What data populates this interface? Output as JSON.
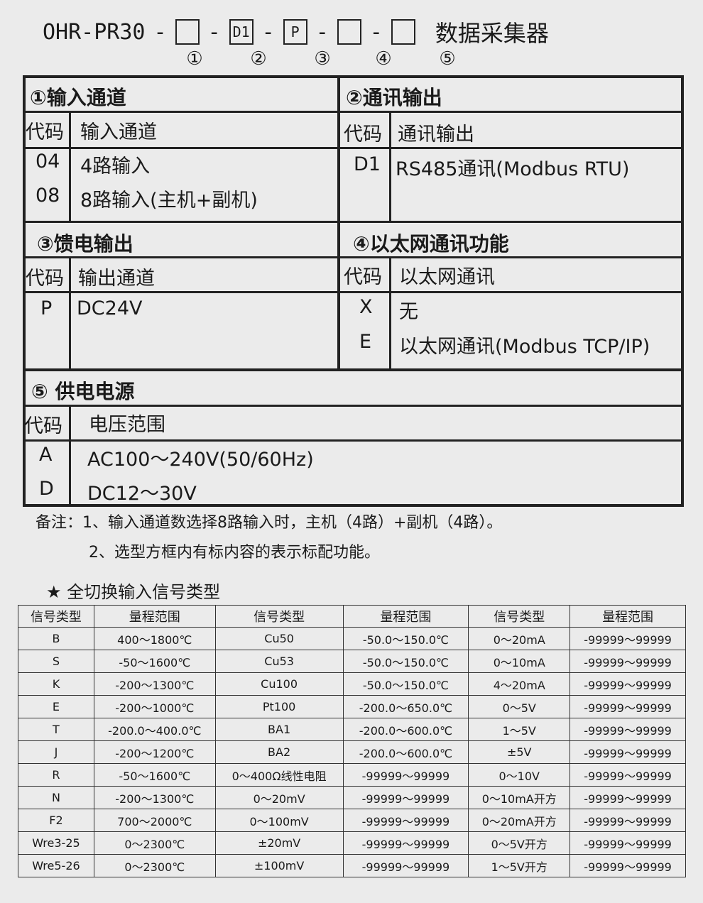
{
  "model": {
    "prefix": "OHR-PR30",
    "dash": "-",
    "slots": [
      "",
      "D1",
      "P",
      "",
      ""
    ],
    "title": "数据采集器",
    "markers": [
      "①",
      "②",
      "③",
      "④",
      "⑤"
    ]
  },
  "sections": {
    "s1": {
      "title": "①输入通道",
      "code_h": "代码",
      "col_h": "输入通道",
      "rows": [
        {
          "code": "04",
          "text": "4路输入"
        },
        {
          "code": "08",
          "text": "8路输入(主机+副机)"
        }
      ]
    },
    "s2": {
      "title": "②通讯输出",
      "code_h": "代码",
      "col_h": "通讯输出",
      "rows": [
        {
          "code": "D1",
          "text": "RS485通讯(Modbus RTU)"
        }
      ]
    },
    "s3": {
      "title": "③馈电输出",
      "code_h": "代码",
      "col_h": "输出通道",
      "rows": [
        {
          "code": "P",
          "text": "DC24V"
        }
      ]
    },
    "s4": {
      "title": "④以太网通讯功能",
      "code_h": "代码",
      "col_h": "以太网通讯",
      "rows": [
        {
          "code": "X",
          "text": "无"
        },
        {
          "code": "E",
          "text": "以太网通讯(Modbus TCP/IP)"
        }
      ]
    },
    "s5": {
      "title": "⑤ 供电电源",
      "code_h": "代码",
      "col_h": "电压范围",
      "rows": [
        {
          "code": "A",
          "text": "AC100～240V(50/60Hz)"
        },
        {
          "code": "D",
          "text": "DC12～30V"
        }
      ]
    }
  },
  "notes": {
    "n1": "备注：1、输入通道数选择8路输入时，主机（4路）+副机（4路）。",
    "n2": "2、选型方框内有标内容的表示标配功能。"
  },
  "signal_heading": "★ 全切换输入信号类型",
  "signal_table": {
    "headers": [
      "信号类型",
      "量程范围",
      "信号类型",
      "量程范围",
      "信号类型",
      "量程范围"
    ],
    "rows": [
      [
        "B",
        "400～1800℃",
        "Cu50",
        "-50.0～150.0℃",
        "0～20mA",
        "-99999～99999"
      ],
      [
        "S",
        "-50～1600℃",
        "Cu53",
        "-50.0～150.0℃",
        "0～10mA",
        "-99999～99999"
      ],
      [
        "K",
        "-200～1300℃",
        "Cu100",
        "-50.0～150.0℃",
        "4～20mA",
        "-99999～99999"
      ],
      [
        "E",
        "-200～1000℃",
        "Pt100",
        "-200.0～650.0℃",
        "0～5V",
        "-99999～99999"
      ],
      [
        "T",
        "-200.0～400.0℃",
        "BA1",
        "-200.0～600.0℃",
        "1～5V",
        "-99999～99999"
      ],
      [
        "J",
        "-200～1200℃",
        "BA2",
        "-200.0～600.0℃",
        "±5V",
        "-99999～99999"
      ],
      [
        "R",
        "-50～1600℃",
        "0～400Ω线性电阻",
        "-99999～99999",
        "0～10V",
        "-99999～99999"
      ],
      [
        "N",
        "-200～1300℃",
        "0～20mV",
        "-99999～99999",
        "0～10mA开方",
        "-99999～99999"
      ],
      [
        "F2",
        "700～2000℃",
        "0～100mV",
        "-99999～99999",
        "0～20mA开方",
        "-99999～99999"
      ],
      [
        "Wre3-25",
        "0～2300℃",
        "±20mV",
        "-99999～99999",
        "0～5V开方",
        "-99999～99999"
      ],
      [
        "Wre5-26",
        "0～2300℃",
        "±100mV",
        "-99999～99999",
        "1～5V开方",
        "-99999～99999"
      ]
    ]
  }
}
